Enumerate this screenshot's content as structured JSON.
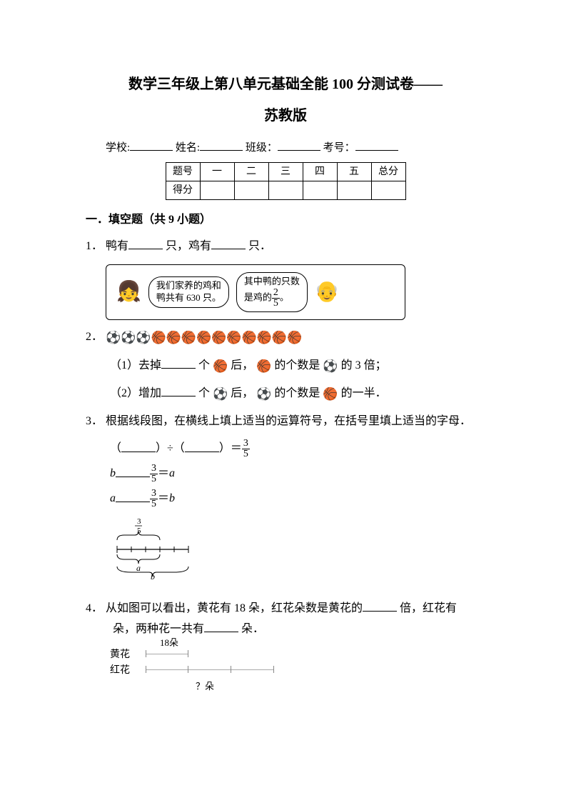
{
  "title_line1": "数学三年级上第八单元基础全能 100 分测试卷——",
  "title_line2": "苏教版",
  "info": {
    "school": "学校:",
    "name": "姓名:",
    "class": "班级：",
    "exam_no": "考号："
  },
  "score_table": {
    "header_row_label": "题号",
    "cols": [
      "一",
      "二",
      "三",
      "四",
      "五",
      "总分"
    ],
    "score_row_label": "得分"
  },
  "section1": {
    "heading": "一．填空题（共 9 小题）",
    "q1": {
      "num": "1．",
      "text_a": "鸭有",
      "text_b": "只，鸡有",
      "text_c": "只．",
      "bubble1_l1": "我们家养的鸡和",
      "bubble1_l2": "鸭共有 630 只。",
      "bubble2_l1": "其中鸭的只数",
      "bubble2_l2a": "是鸡的",
      "bubble2_frac_n": "2",
      "bubble2_frac_d": "5",
      "bubble2_l2b": "。"
    },
    "q2": {
      "num": "2．",
      "balls": {
        "soccer_count": 3,
        "basket_count": 10,
        "soccer_color": "#2b2b2b",
        "basket_fill": "linear-gradient(135deg,#8a3a10 0%,#d96a1e 40%,#f0c060 55%,#d96a1e 70%,#8a3a10 100%)"
      },
      "sub1_a": "（1）去掉",
      "sub1_b": "个",
      "sub1_c": "后，",
      "sub1_d": "的个数是",
      "sub1_e": "的 3 倍；",
      "sub2_a": "（2）增加",
      "sub2_b": "个",
      "sub2_c": "后，",
      "sub2_d": "的个数是",
      "sub2_e": "的一半．"
    },
    "q3": {
      "num": "3．",
      "text": "根据线段图，在横线上填上适当的运算符号，在括号里填上适当的字母．",
      "eq1_a": "（",
      "eq1_b": "）÷（",
      "eq1_c": "）＝",
      "frac_n": "3",
      "frac_d": "5",
      "eq2_var": "b",
      "eq2_eq": "＝",
      "eq2_rhs": "a",
      "eq3_var": "a",
      "eq3_eq": "＝",
      "eq3_rhs": "b",
      "diagram": {
        "top_frac_n": "3",
        "top_frac_d": "5",
        "label_a": "a",
        "label_b": "b"
      }
    },
    "q4": {
      "num": "4．",
      "text_a": "从如图可以看出，黄花有 18 朵，红花朵数是黄花的",
      "text_b": "倍，红花有",
      "text_c": "朵，两种花一共有",
      "text_d": "朵．",
      "diagram": {
        "yellow_label": "黄花",
        "yellow_count": "18朵",
        "red_label": "红花",
        "question": "？朵"
      }
    }
  }
}
